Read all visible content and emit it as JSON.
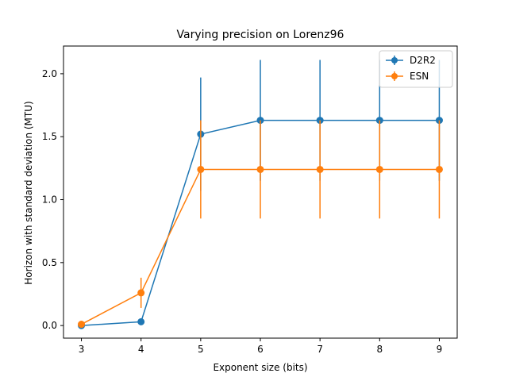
{
  "chart_data": {
    "type": "line",
    "title": "Varying precision on Lorenz96",
    "xlabel": "Exponent size (bits)",
    "ylabel": "Horizon with standard deviation (MTU)",
    "x": [
      3,
      4,
      5,
      6,
      7,
      8,
      9
    ],
    "xlim": [
      2.7,
      9.3
    ],
    "ylim": [
      -0.1,
      2.22
    ],
    "xticks": [
      "3",
      "4",
      "5",
      "6",
      "7",
      "8",
      "9"
    ],
    "xtick_values": [
      3,
      4,
      5,
      6,
      7,
      8,
      9
    ],
    "yticks": [
      "0.0",
      "0.5",
      "1.0",
      "1.5",
      "2.0"
    ],
    "ytick_values": [
      0.0,
      0.5,
      1.0,
      1.5,
      2.0
    ],
    "grid": false,
    "legend_position": "top-right",
    "series": [
      {
        "name": "D2R2",
        "color": "#1f77b4",
        "values": [
          0.0,
          0.03,
          1.52,
          1.63,
          1.63,
          1.63,
          1.63
        ],
        "errors": [
          0.0,
          0.0,
          0.45,
          0.48,
          0.48,
          0.48,
          0.48
        ]
      },
      {
        "name": "ESN",
        "color": "#ff7f0e",
        "values": [
          0.01,
          0.26,
          1.24,
          1.24,
          1.24,
          1.24,
          1.24
        ],
        "errors": [
          0.0,
          0.12,
          0.39,
          0.39,
          0.39,
          0.39,
          0.39
        ]
      }
    ]
  }
}
